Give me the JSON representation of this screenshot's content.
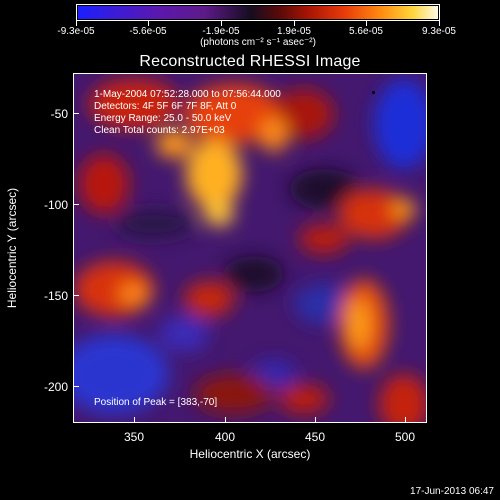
{
  "colorbar": {
    "ticks": [
      "-9.3e-05",
      "-5.6e-05",
      "-1.9e-05",
      "1.9e-05",
      "5.6e-05",
      "9.3e-05"
    ],
    "unit": "(photons cm⁻² s⁻¹ asec⁻²)"
  },
  "title": "Reconstructed RHESSI Image",
  "info": {
    "time": "1-May-2004 07:52:28.000 to 07:56:44.000",
    "detectors": "Detectors: 4F 5F 6F 7F 8F, Att 0",
    "energy": "Energy Range: 25.0 - 50.0 keV",
    "algorithm": "Clean     Total counts: 2.97E+03"
  },
  "peak_label": "Position of Peak = [383,-70]",
  "axes": {
    "xlabel": "Heliocentric X (arcsec)",
    "ylabel": "Heliocentric Y (arcsec)",
    "xticks": [
      "350",
      "400",
      "450",
      "500"
    ],
    "yticks": [
      "-50",
      "-100",
      "-150",
      "-200"
    ]
  },
  "timestamp": "17-Jun-2013 06:47"
}
